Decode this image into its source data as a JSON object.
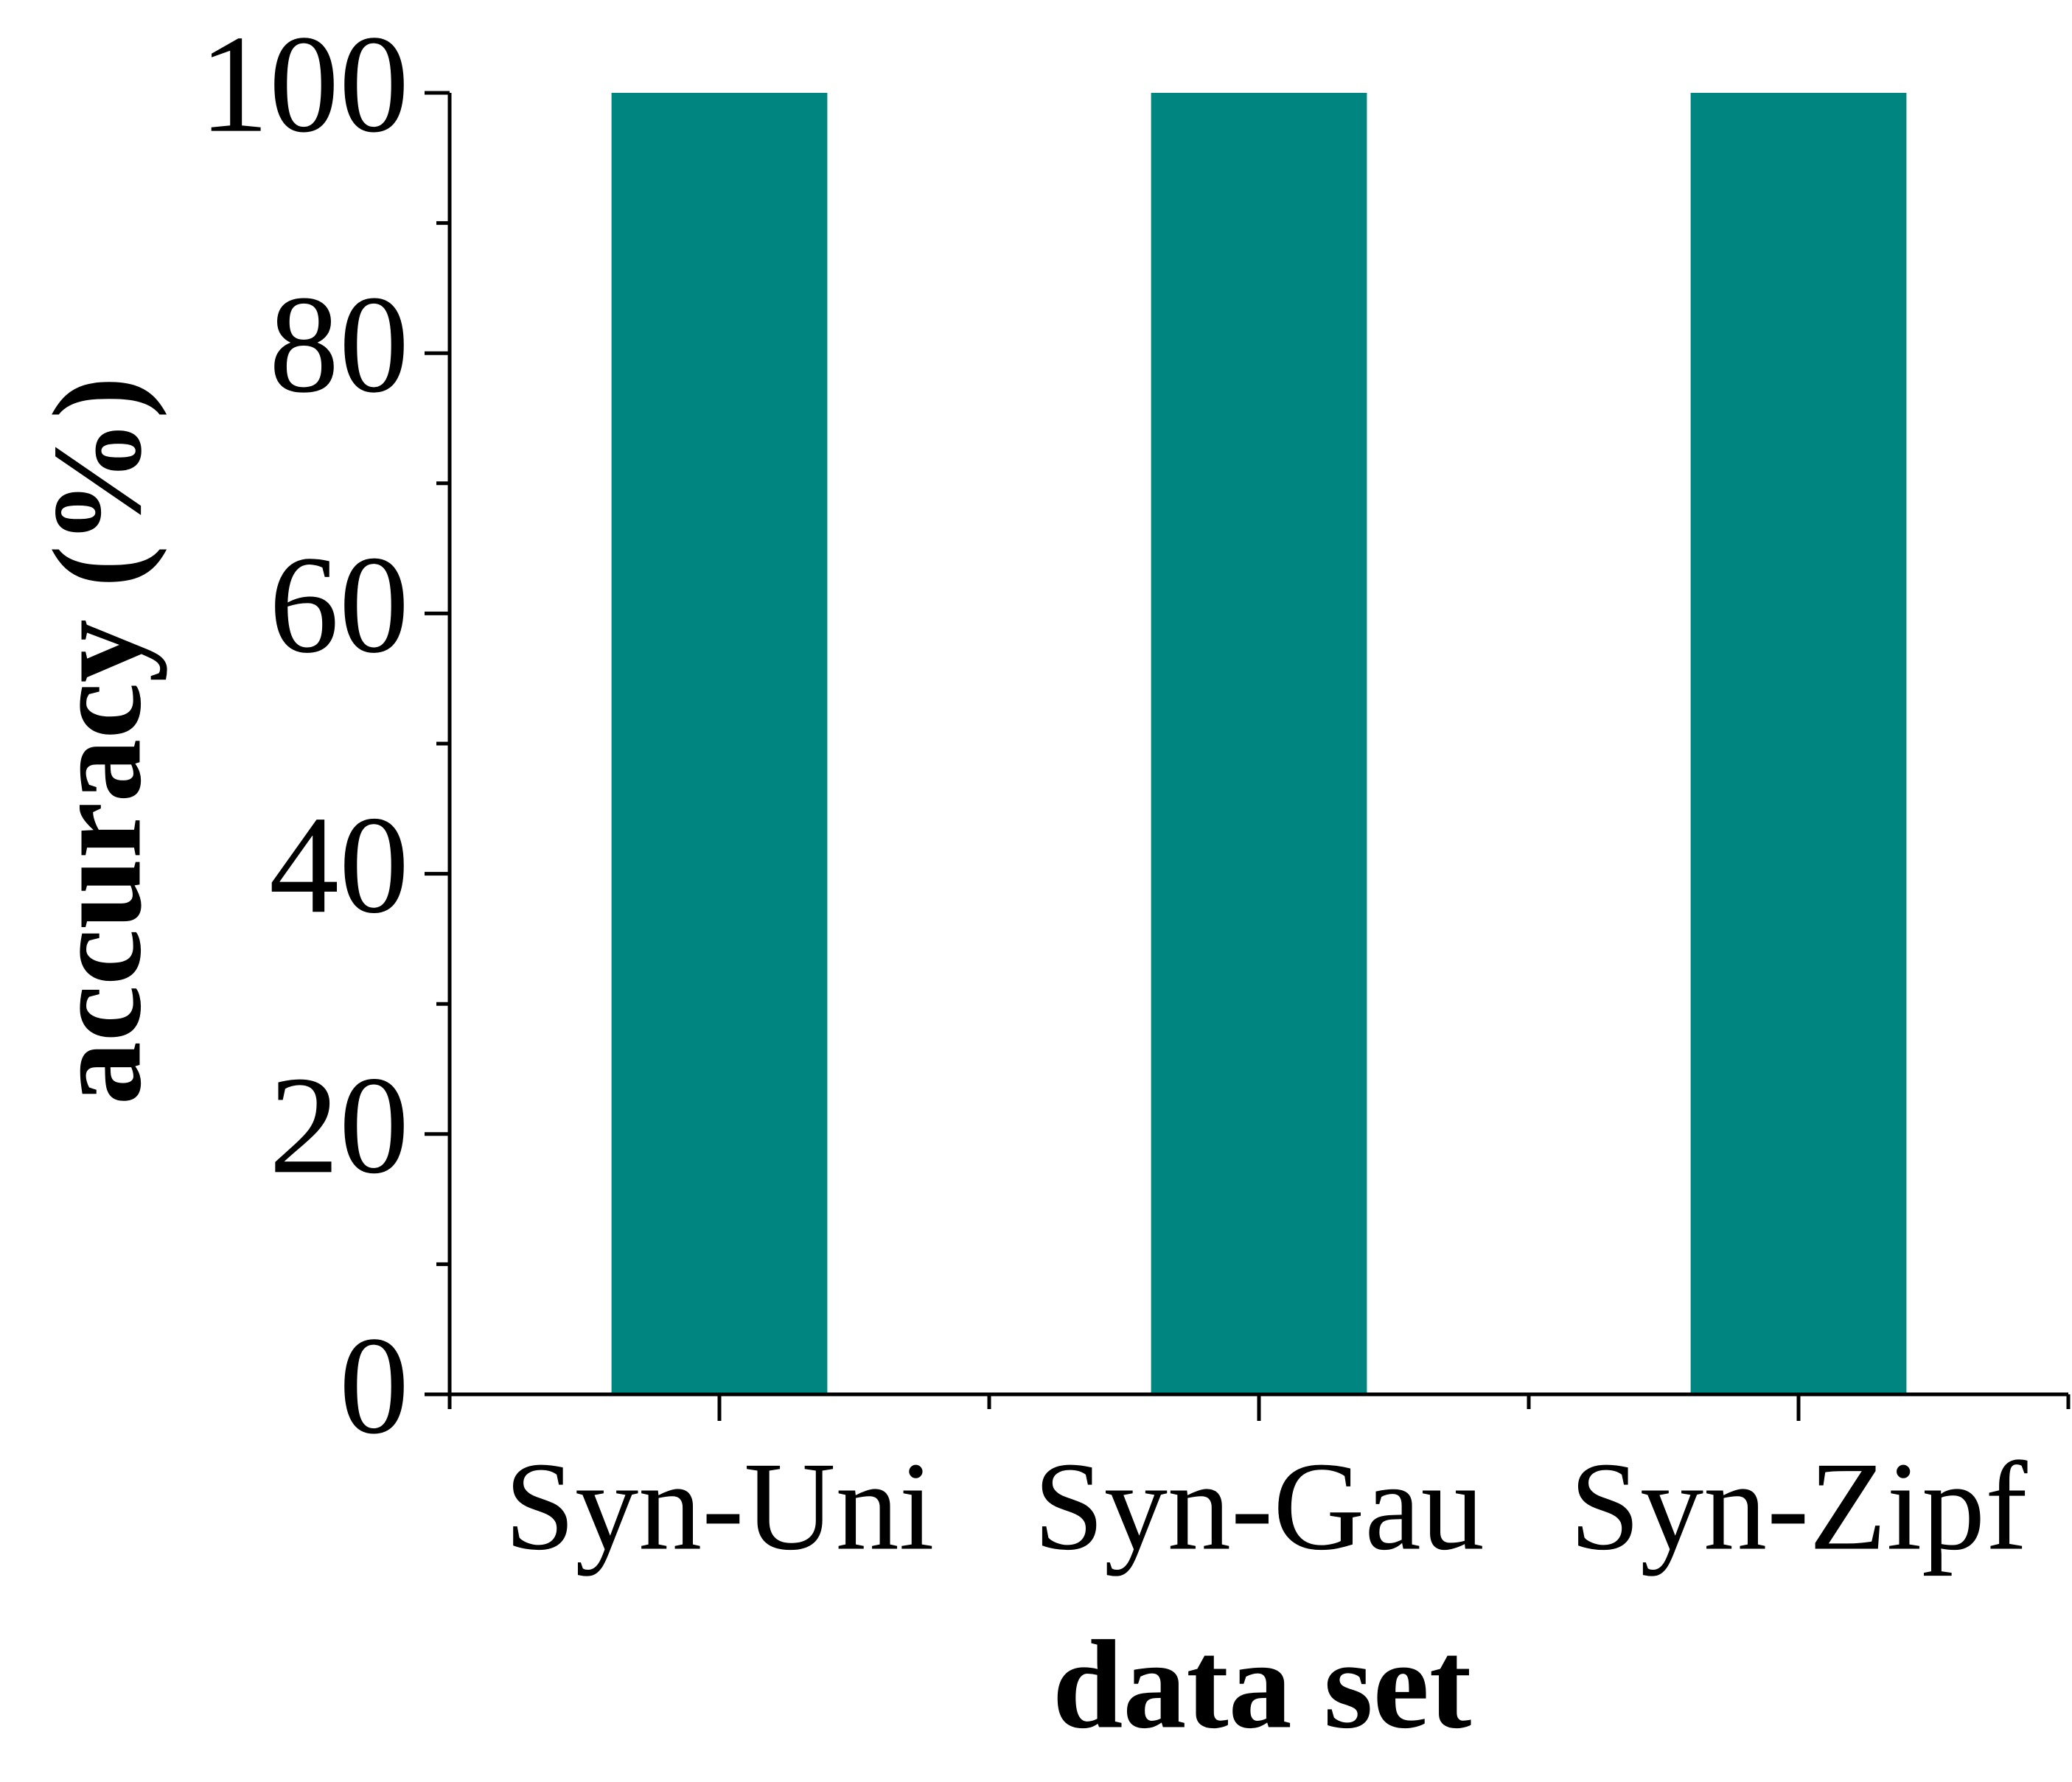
{
  "chart_data": {
    "type": "bar",
    "x_label": "data set",
    "y_label": "accuracy (%)",
    "categories": [
      "Syn-Uni",
      "Syn-Gau",
      "Syn-Zipf"
    ],
    "values": [
      100,
      100,
      100
    ],
    "color": "#008580",
    "ylim": [
      0,
      100
    ],
    "yticks": [
      0,
      20,
      40,
      60,
      80,
      100
    ],
    "yminorticks": [
      10,
      30,
      50,
      70,
      90
    ],
    "grid": false
  }
}
